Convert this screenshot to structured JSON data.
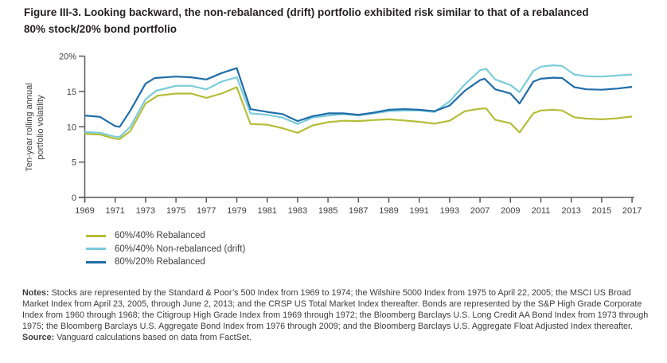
{
  "figure": {
    "title_line1": "Figure III-3. Looking backward, the non-rebalanced (drift) portfolio exhibited risk similar to that of a rebalanced",
    "title_line2": "80% stock/20% bond portfolio"
  },
  "ylabel_line1": "Ten-year rolling annual",
  "ylabel_line2": "portfolio volatility",
  "notes": {
    "label": "Notes:",
    "body": "Stocks are represented by the Standard & Poor’s 500 Index from 1969 to 1974; the Wilshire 5000 Index from 1975 to April 22, 2005; the MSCI US Broad Market Index from April 23, 2005, through June 2, 2013; and the CRSP US Total Market Index thereafter. Bonds are represented by the S&P High Grade Corporate Index from 1960 through 1968; the Citigroup High Grade Index from 1969 through 1972; the Bloomberg Barclays U.S. Long Credit AA Bond Index from 1973 through 1975; the Bloomberg Barclays U.S. Aggregate Bond Index from 1976 through 2009; and the Bloomberg Barclays U.S. Aggregate Float Adjusted Index thereafter."
  },
  "source": {
    "label": "Source:",
    "body": "Vanguard calculations based on data from FactSet."
  },
  "colors": {
    "axis": "#58595b",
    "tick_text": "#414042",
    "olive": "#b4bd38",
    "cyan": "#7bccd8",
    "blue": "#1f6da9"
  },
  "chart_data": {
    "type": "line",
    "title": "Looking backward, the non-rebalanced (drift) portfolio exhibited risk similar to that of a rebalanced 80% stock/20% bond portfolio",
    "ylabel": "Ten-year rolling annual portfolio volatility",
    "ylim": [
      0,
      20
    ],
    "grid": false,
    "legend_position": "bottom-left",
    "y_ticks": [
      {
        "v": 0,
        "label": "0"
      },
      {
        "v": 5,
        "label": "5"
      },
      {
        "v": 10,
        "label": "10"
      },
      {
        "v": 15,
        "label": "15"
      },
      {
        "v": 20,
        "label": "20%"
      }
    ],
    "x_tick_labels": [
      "1969",
      "1971",
      "1973",
      "1975",
      "1977",
      "1979",
      "1981",
      "1983",
      "1985",
      "1987",
      "1989",
      "1991",
      "1993",
      "2007",
      "2009",
      "2011",
      "2013",
      "2015",
      "2017"
    ],
    "x_note": "x values below are in tick units: 0 = 1969 tick, 1 = 1971 tick, ... 18 = 2017 tick",
    "series": [
      {
        "name": "60%/40% Rebalanced",
        "color": "#b4bd38",
        "points": [
          [
            0,
            9.0
          ],
          [
            0.5,
            8.9
          ],
          [
            1,
            8.3
          ],
          [
            1.15,
            8.25
          ],
          [
            1.5,
            9.4
          ],
          [
            2,
            13.3
          ],
          [
            2.4,
            14.4
          ],
          [
            3,
            14.7
          ],
          [
            3.5,
            14.7
          ],
          [
            4,
            14.1
          ],
          [
            4.5,
            14.7
          ],
          [
            5,
            15.6
          ],
          [
            5.45,
            10.4
          ],
          [
            6,
            10.3
          ],
          [
            6.5,
            9.8
          ],
          [
            7,
            9.15
          ],
          [
            7.5,
            10.2
          ],
          [
            8,
            10.65
          ],
          [
            8.5,
            10.85
          ],
          [
            9,
            10.8
          ],
          [
            9.5,
            10.95
          ],
          [
            10,
            11.05
          ],
          [
            10.5,
            10.9
          ],
          [
            11,
            10.7
          ],
          [
            11.5,
            10.45
          ],
          [
            12,
            10.85
          ],
          [
            12.5,
            12.2
          ],
          [
            13,
            12.55
          ],
          [
            13.2,
            12.6
          ],
          [
            13.5,
            11.0
          ],
          [
            14,
            10.5
          ],
          [
            14.3,
            9.2
          ],
          [
            14.75,
            11.9
          ],
          [
            15,
            12.3
          ],
          [
            15.4,
            12.4
          ],
          [
            15.7,
            12.3
          ],
          [
            16.1,
            11.35
          ],
          [
            16.5,
            11.15
          ],
          [
            17,
            11.05
          ],
          [
            17.5,
            11.2
          ],
          [
            18,
            11.45
          ]
        ]
      },
      {
        "name": "60%/40% Non-rebalanced (drift)",
        "color": "#7bccd8",
        "points": [
          [
            0,
            9.25
          ],
          [
            0.5,
            9.15
          ],
          [
            1,
            8.6
          ],
          [
            1.15,
            8.55
          ],
          [
            1.5,
            10.0
          ],
          [
            2,
            13.9
          ],
          [
            2.35,
            15.1
          ],
          [
            3,
            15.8
          ],
          [
            3.5,
            15.8
          ],
          [
            4,
            15.3
          ],
          [
            4.5,
            16.4
          ],
          [
            5,
            17.0
          ],
          [
            5.45,
            11.9
          ],
          [
            6,
            11.7
          ],
          [
            6.5,
            11.3
          ],
          [
            7,
            10.4
          ],
          [
            7.5,
            11.3
          ],
          [
            8,
            11.6
          ],
          [
            8.5,
            11.8
          ],
          [
            9,
            11.6
          ],
          [
            9.5,
            11.9
          ],
          [
            10,
            12.2
          ],
          [
            10.5,
            12.3
          ],
          [
            11,
            12.3
          ],
          [
            11.5,
            12.1
          ],
          [
            12,
            13.6
          ],
          [
            12.5,
            16.0
          ],
          [
            13,
            18.0
          ],
          [
            13.2,
            18.2
          ],
          [
            13.5,
            16.7
          ],
          [
            14,
            15.9
          ],
          [
            14.3,
            14.9
          ],
          [
            14.75,
            17.9
          ],
          [
            15,
            18.5
          ],
          [
            15.4,
            18.7
          ],
          [
            15.7,
            18.6
          ],
          [
            16.1,
            17.4
          ],
          [
            16.5,
            17.15
          ],
          [
            17,
            17.1
          ],
          [
            17.5,
            17.25
          ],
          [
            18,
            17.4
          ]
        ]
      },
      {
        "name": "80%/20% Rebalanced",
        "color": "#1f6da9",
        "points": [
          [
            0,
            11.6
          ],
          [
            0.5,
            11.4
          ],
          [
            1,
            10.1
          ],
          [
            1.15,
            10.0
          ],
          [
            1.5,
            12.3
          ],
          [
            2,
            16.1
          ],
          [
            2.3,
            16.9
          ],
          [
            3,
            17.1
          ],
          [
            3.5,
            17.0
          ],
          [
            4,
            16.7
          ],
          [
            4.5,
            17.6
          ],
          [
            5,
            18.3
          ],
          [
            5.45,
            12.5
          ],
          [
            6,
            12.1
          ],
          [
            6.5,
            11.8
          ],
          [
            7,
            10.8
          ],
          [
            7.5,
            11.5
          ],
          [
            8,
            11.9
          ],
          [
            8.5,
            11.9
          ],
          [
            9,
            11.7
          ],
          [
            9.5,
            12.0
          ],
          [
            10,
            12.4
          ],
          [
            10.5,
            12.5
          ],
          [
            11,
            12.4
          ],
          [
            11.5,
            12.2
          ],
          [
            12,
            13.0
          ],
          [
            12.5,
            15.1
          ],
          [
            13,
            16.6
          ],
          [
            13.15,
            16.8
          ],
          [
            13.5,
            15.3
          ],
          [
            13.85,
            14.9
          ],
          [
            14,
            14.7
          ],
          [
            14.3,
            13.3
          ],
          [
            14.75,
            16.4
          ],
          [
            15,
            16.8
          ],
          [
            15.4,
            16.95
          ],
          [
            15.7,
            16.9
          ],
          [
            16.1,
            15.6
          ],
          [
            16.5,
            15.3
          ],
          [
            17,
            15.25
          ],
          [
            17.5,
            15.4
          ],
          [
            18,
            15.65
          ]
        ]
      }
    ]
  }
}
